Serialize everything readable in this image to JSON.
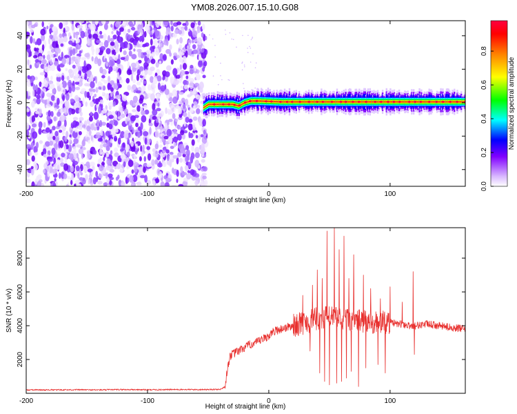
{
  "figure_title": "YM08.2026.007.15.10.G08",
  "chart_data": [
    {
      "type": "heatmap",
      "panel": "spectrogram",
      "title": "YM08.2026.007.15.10.G08",
      "xlabel": "Height of straight line (km)",
      "ylabel": "Frequency (Hz)",
      "xlim": [
        -200,
        162
      ],
      "ylim": [
        -50,
        49
      ],
      "x_ticks": [
        -200,
        -100,
        0,
        100
      ],
      "x_tick_labels": [
        "-200",
        "-100",
        "0",
        "100"
      ],
      "y_ticks": [
        -40,
        -20,
        0,
        20,
        40
      ],
      "y_tick_labels": [
        "-40",
        "-20",
        "0",
        "20",
        "40"
      ],
      "colorbar": {
        "label": "Normalized spectral amplitude",
        "range": [
          0,
          0.98
        ],
        "ticks": [
          0.0,
          0.2,
          0.4,
          0.6,
          0.8
        ],
        "tick_labels": [
          "0.0",
          "0.2",
          "0.4",
          "0.6",
          "0.8"
        ],
        "colors": [
          "#ffffff",
          "#e0c8ff",
          "#8000ff",
          "#0000ff",
          "#00ffff",
          "#00ff00",
          "#ffff00",
          "#ff8000",
          "#ff0000",
          "#ff0040"
        ]
      },
      "regions": [
        {
          "x_range": [
            -200,
            -54
          ],
          "y_range": [
            -50,
            49
          ],
          "description": "broadband noise",
          "amplitude_range": [
            0.0,
            0.25
          ]
        },
        {
          "x_range": [
            -54,
            162
          ],
          "y_range": [
            -3,
            3
          ],
          "description": "carrier line near 0 Hz",
          "amplitude_range": [
            0.3,
            0.98
          ]
        }
      ],
      "carrier_line": {
        "x": [
          -54,
          -50,
          -45,
          -30,
          -25,
          -20,
          -15,
          -10,
          10,
          50,
          100,
          162
        ],
        "y": [
          -3,
          -1,
          -1,
          -1,
          -2,
          0,
          1,
          1,
          0.5,
          0.5,
          0.5,
          0.5
        ]
      }
    },
    {
      "type": "line",
      "panel": "snr",
      "xlabel": "Height of straight line (km)",
      "ylabel": "SNR (10 * v/v)",
      "xlim": [
        -200,
        162
      ],
      "ylim": [
        0,
        9800
      ],
      "x_ticks": [
        -200,
        -100,
        0,
        100
      ],
      "x_tick_labels": [
        "-200",
        "-100",
        "0",
        "100"
      ],
      "y_ticks": [
        2000,
        4000,
        6000,
        8000
      ],
      "y_tick_labels": [
        "2000",
        "4000",
        "6000",
        "8000"
      ],
      "series": [
        {
          "name": "SNR",
          "color": "#e8302e",
          "x": [
            -200,
            -180,
            -160,
            -140,
            -120,
            -100,
            -80,
            -60,
            -40,
            -36,
            -34,
            -32,
            -30,
            -25,
            -20,
            -15,
            -10,
            -5,
            0,
            5,
            10,
            15,
            20,
            25,
            30,
            35,
            40,
            45,
            50,
            55,
            60,
            65,
            70,
            75,
            80,
            85,
            90,
            95,
            100,
            105,
            110,
            115,
            120,
            130,
            140,
            150,
            162
          ],
          "values": [
            200,
            200,
            210,
            200,
            220,
            210,
            220,
            220,
            230,
            400,
            1500,
            2200,
            2300,
            2500,
            2700,
            2900,
            3000,
            3200,
            3400,
            3700,
            3800,
            3900,
            4000,
            4100,
            4200,
            4300,
            4400,
            4500,
            4500,
            4500,
            4400,
            4400,
            4300,
            4300,
            4200,
            4200,
            4200,
            4200,
            4200,
            4100,
            4100,
            4000,
            4000,
            4100,
            4000,
            3900,
            3800
          ]
        }
      ],
      "peaks": {
        "x": [
          28,
          36,
          40,
          44,
          48,
          50,
          54,
          58,
          62,
          66,
          70,
          74,
          78,
          84,
          92,
          100,
          110,
          119
        ],
        "values": [
          5800,
          6400,
          7300,
          6800,
          9600,
          8000,
          9800,
          8500,
          9300,
          6800,
          8200,
          6000,
          7000,
          6200,
          5600,
          6300,
          5400,
          7200
        ]
      },
      "dips": {
        "x": [
          34,
          42,
          46,
          50,
          56,
          60,
          64,
          68,
          74,
          80,
          90,
          96,
          120
        ],
        "values": [
          2500,
          1200,
          700,
          500,
          600,
          700,
          900,
          1300,
          400,
          1500,
          1700,
          1200,
          2300
        ]
      }
    }
  ]
}
